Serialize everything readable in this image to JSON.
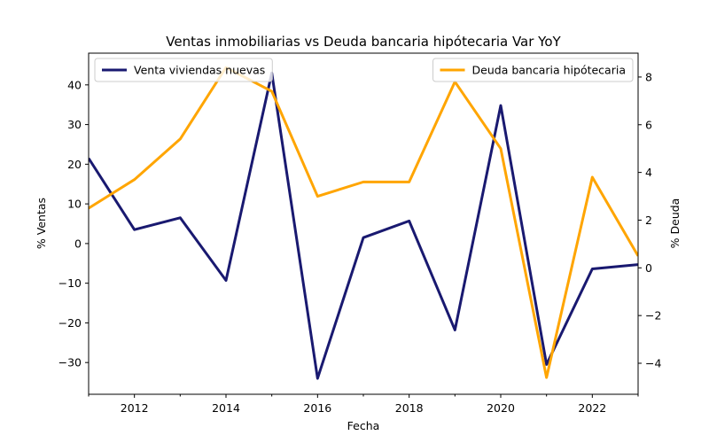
{
  "chart_data": {
    "type": "line",
    "title": "Ventas inmobiliarias vs Deuda bancaria hipótecaria Var YoY",
    "xlabel": "Fecha",
    "ylabel_left": "% Ventas",
    "ylabel_right": "% Deuda",
    "x": [
      2011,
      2012,
      2013,
      2014,
      2015,
      2016,
      2017,
      2018,
      2019,
      2020,
      2021,
      2022,
      2023
    ],
    "xlim": [
      2011,
      2023
    ],
    "x_ticks": [
      2012,
      2014,
      2016,
      2018,
      2020,
      2022
    ],
    "ylim_left": [
      -38,
      48
    ],
    "y_ticks_left": [
      -30,
      -20,
      -10,
      0,
      10,
      20,
      30,
      40
    ],
    "ylim_right": [
      -5.3,
      9.0
    ],
    "y_ticks_right": [
      -4,
      -2,
      0,
      2,
      4,
      6,
      8
    ],
    "grid": false,
    "series": [
      {
        "name": "Venta viviendas nuevas",
        "axis": "left",
        "color": "#191970",
        "legend_position": "upper-left",
        "values": [
          21.5,
          3.5,
          6.5,
          -9.3,
          43.0,
          -34.0,
          1.5,
          5.7,
          -21.8,
          34.8,
          -30.5,
          -6.4,
          -5.3
        ]
      },
      {
        "name": "Deuda bancaria hipótecaria",
        "axis": "right",
        "color": "#FFA500",
        "legend_position": "upper-right",
        "values": [
          2.5,
          3.7,
          5.4,
          8.4,
          7.4,
          3.0,
          3.6,
          3.6,
          7.8,
          5.0,
          -4.6,
          3.8,
          0.5
        ]
      }
    ]
  }
}
